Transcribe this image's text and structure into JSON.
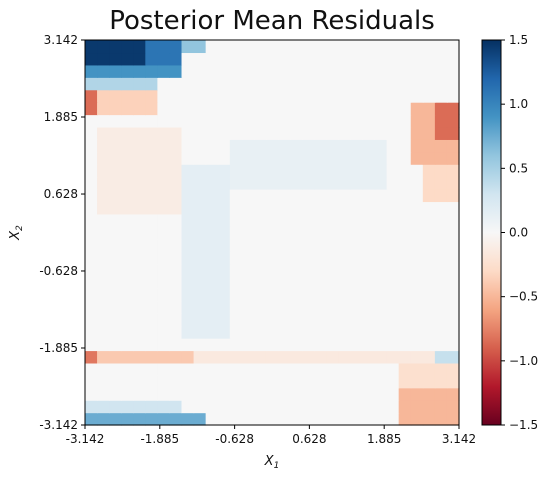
{
  "chart_data": {
    "type": "heatmap",
    "title": "Posterior Mean Residuals",
    "xlabel": "X",
    "xlabel_sub": "1",
    "ylabel": "X",
    "ylabel_sub": "2",
    "xlim": [
      -3.142,
      3.142
    ],
    "ylim": [
      -3.142,
      3.142
    ],
    "x_ticks": [
      "-3.142",
      "-1.885",
      "-0.628",
      "0.628",
      "1.885",
      "3.142"
    ],
    "y_ticks": [
      "-3.142",
      "-1.885",
      "-0.628",
      "0.628",
      "1.885",
      "3.142"
    ],
    "x_tick_values": [
      -3.142,
      -1.885,
      -0.628,
      0.628,
      1.885,
      3.142
    ],
    "y_tick_values": [
      -3.142,
      -1.885,
      -0.628,
      0.628,
      1.885,
      3.142
    ],
    "grid": false,
    "colormap": "RdBu",
    "grid_resolution": [
      31,
      31
    ],
    "colorbar": {
      "vmin": -1.5,
      "vmax": 1.5,
      "ticks": [
        1.5,
        1.0,
        0.5,
        0.0,
        -0.5,
        -1.0,
        -1.5
      ],
      "tick_labels": [
        "1.5",
        "1.0",
        "0.5",
        "0.0",
        "−0.5",
        "−1.0",
        "−1.5"
      ]
    },
    "features": [
      {
        "x": [
          -3.142,
          -2.1
        ],
        "y": [
          2.8,
          3.142
        ],
        "value": 1.45
      },
      {
        "x": [
          -2.1,
          -1.55
        ],
        "y": [
          2.8,
          3.142
        ],
        "value": 1.1
      },
      {
        "x": [
          -1.55,
          -1.2
        ],
        "y": [
          2.85,
          3.142
        ],
        "value": 0.6
      },
      {
        "x": [
          -3.142,
          -1.55
        ],
        "y": [
          2.55,
          2.8
        ],
        "value": 0.9
      },
      {
        "x": [
          -3.142,
          -1.9
        ],
        "y": [
          2.4,
          2.55
        ],
        "value": 0.45
      },
      {
        "x": [
          -3.142,
          -2.9
        ],
        "y": [
          2.0,
          2.4
        ],
        "value": -0.85
      },
      {
        "x": [
          -2.9,
          -2.0
        ],
        "y": [
          2.0,
          2.35
        ],
        "value": -0.35
      },
      {
        "x": [
          2.35,
          3.142
        ],
        "y": [
          1.2,
          2.05
        ],
        "value": -0.5
      },
      {
        "x": [
          2.8,
          3.142
        ],
        "y": [
          1.5,
          2.05
        ],
        "value": -0.85
      },
      {
        "x": [
          2.5,
          3.142
        ],
        "y": [
          0.5,
          1.2
        ],
        "value": -0.3
      },
      {
        "x": [
          -3.142,
          -2.9
        ],
        "y": [
          -2.05,
          -1.85
        ],
        "value": -0.8
      },
      {
        "x": [
          -2.9,
          -1.3
        ],
        "y": [
          -2.05,
          -1.85
        ],
        "value": -0.4
      },
      {
        "x": [
          -1.3,
          2.8
        ],
        "y": [
          -2.05,
          -1.85
        ],
        "value": -0.15
      },
      {
        "x": [
          2.8,
          3.142
        ],
        "y": [
          -2.05,
          -1.85
        ],
        "value": 0.35
      },
      {
        "x": [
          -3.142,
          -1.2
        ],
        "y": [
          -3.142,
          -2.95
        ],
        "value": 0.75
      },
      {
        "x": [
          -3.142,
          -1.5
        ],
        "y": [
          -2.95,
          -2.75
        ],
        "value": 0.3
      },
      {
        "x": [
          2.2,
          3.142
        ],
        "y": [
          -3.142,
          -2.5
        ],
        "value": -0.5
      },
      {
        "x": [
          2.2,
          3.142
        ],
        "y": [
          -2.5,
          -2.05
        ],
        "value": -0.25
      },
      {
        "x": [
          -1.5,
          -0.75
        ],
        "y": [
          -1.7,
          1.2
        ],
        "value": 0.15
      },
      {
        "x": [
          -0.75,
          2.0
        ],
        "y": [
          0.8,
          1.5
        ],
        "value": 0.12
      },
      {
        "x": [
          -2.9,
          -1.6
        ],
        "y": [
          0.3,
          1.7
        ],
        "value": -0.12
      }
    ]
  }
}
